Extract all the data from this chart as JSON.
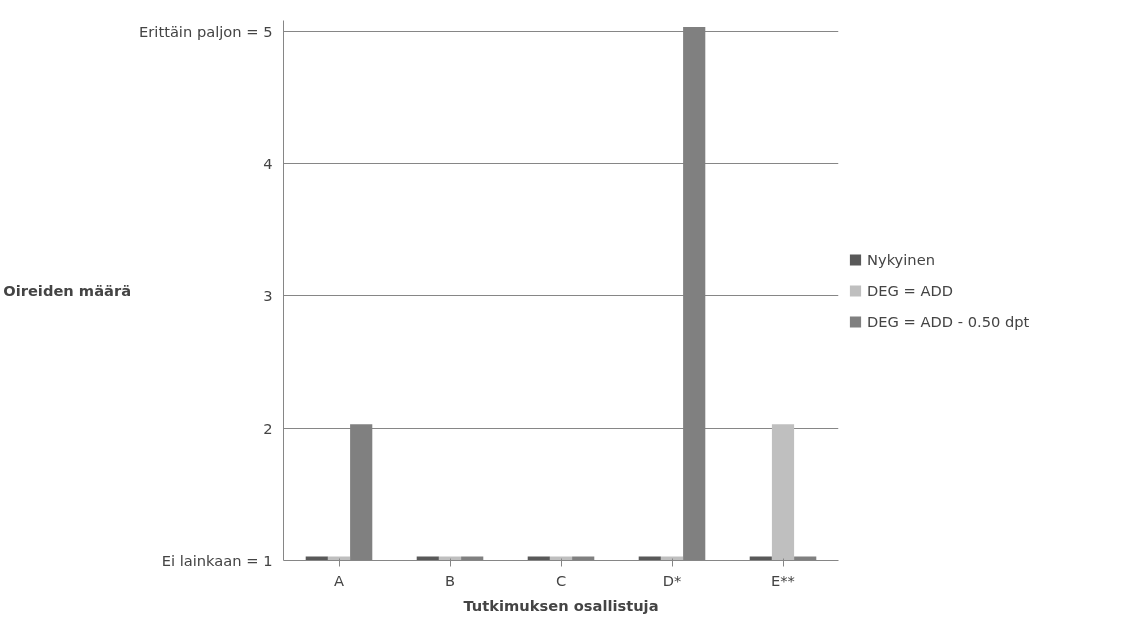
{
  "chart_data": {
    "type": "bar",
    "xlabel": "Tutkimuksen osallistuja",
    "ylabel": "Oireiden määrä",
    "categories": [
      "A",
      "B",
      "C",
      "D*",
      "E**"
    ],
    "series": [
      {
        "name": "Nykyinen",
        "color": "#595959",
        "values": [
          1.03,
          1.03,
          1.03,
          1.03,
          1.03
        ]
      },
      {
        "name": "DEG = ADD",
        "color": "#bfbfbf",
        "values": [
          1.03,
          1.03,
          1.03,
          1.03,
          2.03
        ]
      },
      {
        "name": "DEG = ADD - 0.50 dpt",
        "color": "#808080",
        "values": [
          2.03,
          1.03,
          1.03,
          5.03,
          1.03
        ]
      }
    ],
    "ylim": [
      1,
      5.08
    ],
    "yticks": [
      {
        "value": 1,
        "label": "Ei lainkaan = 1"
      },
      2,
      3,
      4,
      {
        "value": 5,
        "label": "Erittäin paljon = 5"
      }
    ],
    "grid": "y",
    "legend": "right"
  }
}
